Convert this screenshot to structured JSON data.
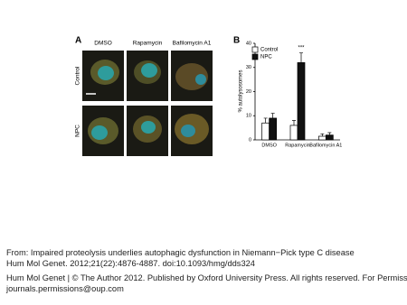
{
  "panel_a": {
    "label": "A",
    "columns": [
      "DMSO",
      "Rapamycin",
      "Bafilomycin A1"
    ],
    "rows": [
      "Control",
      "NPC"
    ]
  },
  "chart_data": {
    "type": "bar",
    "label": "B",
    "y_label": "% autolysosomes",
    "categories": [
      "DMSO",
      "Rapamycin",
      "Bafilomycin A1"
    ],
    "series": [
      {
        "name": "Control",
        "color": "#ffffff",
        "values": [
          7,
          6,
          1.5
        ],
        "errors": [
          2,
          2,
          1
        ]
      },
      {
        "name": "NPC",
        "color": "#111111",
        "values": [
          9,
          32,
          2
        ],
        "errors": [
          2,
          4,
          1
        ]
      }
    ],
    "ylim": [
      0,
      40
    ],
    "yticks": [
      0,
      10,
      20,
      30,
      40
    ],
    "annotation": "***"
  },
  "citation": {
    "from": "From: Impaired proteolysis underlies autophagic dysfunction in Niemann−Pick type C disease",
    "reference": "Hum Mol Genet. 2012;21(22):4876-4887. doi:10.1093/hmg/dds324",
    "copyright": "Hum Mol Genet | © The Author 2012. Published by Oxford University Press. All rights reserved. For Permissions, please email:",
    "email": "journals.permissions@oup.com"
  }
}
